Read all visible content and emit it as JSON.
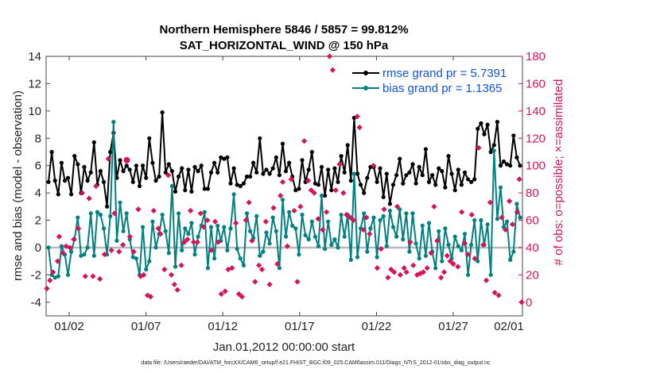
{
  "chart_data": {
    "type": "line",
    "title": "Northern Hemisphere 5846 / 5857 = 99.812%",
    "subtitle": "SAT_HORIZONTAL_WIND @ 150 hPa",
    "xlabel": "Jan.01,2012 00:00:00 start",
    "ylabel_left": "rmse and bias (model - observation)",
    "ylabel_right": "# of obs: o=possible; ×=assimilated",
    "footer": "data file: /Users/raeder/DAI/ATM_forcXX/CAM6_setup/f.e21.FHIST_BGC.f09_025.CAM6assim.011/Diags_NTrS_2012-01/obs_diag_output.nc",
    "x_range": [
      0.5,
      31.5
    ],
    "y_left_range": [
      -5,
      14
    ],
    "y_right_range": [
      -10,
      180
    ],
    "x_ticks": [
      {
        "x": 2,
        "label": "01/02"
      },
      {
        "x": 7,
        "label": "01/07"
      },
      {
        "x": 12,
        "label": "01/12"
      },
      {
        "x": 17,
        "label": "01/17"
      },
      {
        "x": 22,
        "label": "01/22"
      },
      {
        "x": 27,
        "label": "01/27"
      },
      {
        "x": 32,
        "label": "02/01"
      }
    ],
    "y_left_ticks": [
      14,
      12,
      10,
      8,
      6,
      4,
      2,
      0,
      -2,
      -4
    ],
    "y_right_ticks": [
      180,
      160,
      140,
      120,
      100,
      80,
      60,
      40,
      20,
      0
    ],
    "zero_line": 0,
    "series": [
      {
        "name": "rmse grand pr = 5.7391",
        "color": "#000000",
        "axis": "left",
        "values": [
          4.8,
          7.0,
          4.9,
          3.9,
          6.2,
          4.9,
          5.1,
          3.9,
          6.7,
          6.1,
          4.0,
          5.9,
          4.9,
          5.5,
          7.7,
          4.6,
          5.6,
          4.8,
          3.0,
          7.0,
          8.4,
          5.1,
          6.4,
          5.6,
          6.0,
          5.7,
          4.8,
          6.0,
          4.5,
          6.0,
          5.1,
          8.0,
          6.2,
          4.9,
          5.2,
          9.9,
          5.5,
          6.1,
          5.6,
          4.1,
          5.2,
          5.8,
          4.2,
          5.7,
          4.1,
          5.9,
          5.6,
          6.0,
          4.3,
          4.3,
          5.5,
          6.2,
          5.5,
          6.6,
          6.5,
          6.6,
          4.7,
          5.8,
          4.6,
          4.5,
          4.7,
          5.2,
          5.2,
          6.2,
          5.5,
          8.0,
          5.4,
          5.7,
          5.4,
          5.8,
          6.6,
          5.3,
          7.6,
          5.6,
          6.2,
          5.2,
          4.2,
          4.3,
          6.4,
          4.8,
          5.7,
          7.0,
          4.7,
          4.6,
          5.9,
          3.8,
          5.7,
          4.2,
          5.8,
          4.8,
          6.7,
          5.5,
          7.5,
          4.9,
          9.5,
          5.4,
          4.6,
          4.0,
          5.1,
          5.9,
          5.9,
          4.8,
          5.8,
          3.7,
          5.4,
          3.2,
          4.6,
          5.3,
          6.5,
          4.7,
          5.3,
          5.5,
          6.1,
          4.7,
          5.9,
          5.3,
          7.2,
          4.8,
          5.3,
          4.6,
          5.8,
          5.6,
          4.4,
          6.7,
          5.4,
          4.2,
          5.7,
          4.6,
          5.5,
          5.0,
          4.8,
          5.0,
          8.7,
          9.1,
          8.3,
          9.0,
          7.0,
          7.5,
          9.2,
          6.0,
          6.3,
          6.1,
          6.0,
          8.2,
          6.6,
          6.0
        ]
      },
      {
        "name": "bias grand pr = 1.1365",
        "color": "#008080",
        "axis": "left",
        "values": [
          0.0,
          -2.0,
          -2.2,
          -2.1,
          0.1,
          -0.5,
          -2.0,
          -0.3,
          0.6,
          2.2,
          -0.6,
          -0.5,
          0.0,
          2.5,
          -0.6,
          2.6,
          2.4,
          1.4,
          -0.5,
          2.3,
          9.2,
          0.5,
          3.3,
          1.2,
          2.5,
          0.6,
          -0.7,
          -0.8,
          -2.0,
          1.5,
          -1.6,
          -1.0,
          1.9,
          0.0,
          1.0,
          2.4,
          1.2,
          -0.4,
          4.5,
          -1.4,
          2.5,
          -0.2,
          1.4,
          1.0,
          1.8,
          -0.5,
          0.8,
          1.6,
          2.6,
          -1.5,
          1.5,
          -0.8,
          1.6,
          0.5,
          1.5,
          -0.2,
          1.4,
          3.9,
          -0.1,
          -0.8,
          -1.3,
          2.5,
          1.2,
          0.7,
          2.3,
          -0.6,
          -0.3,
          1.1,
          0.3,
          2.2,
          1.2,
          -1.5,
          3.5,
          0.8,
          2.6,
          1.6,
          1.4,
          -0.5,
          2.4,
          0.9,
          0.6,
          1.9,
          0.8,
          0.1,
          3.8,
          -0.1,
          1.9,
          0.2,
          0.6,
          0.0,
          2.4,
          0.8,
          2.4,
          -0.9,
          5.4,
          -0.7,
          1.4,
          2.5,
          -0.3,
          1.4,
          2.2,
          -0.7,
          2.0,
          2.3,
          0.1,
          2.7,
          1.5,
          0.8,
          2.8,
          0.6,
          2.5,
          -0.3,
          2.5,
          0.3,
          -0.8,
          1.6,
          -0.6,
          1.8,
          -0.3,
          -1.5,
          1.2,
          -1.0,
          1.4,
          0.2,
          -0.8,
          0.8,
          0.1,
          -0.2,
          1.0,
          -2.0,
          0.2,
          2.0,
          -1.0,
          2.0,
          0.2,
          1.7,
          -2.0,
          7.1,
          2.1,
          4.4,
          1.5,
          1.9,
          -0.9,
          -0.3,
          3.2,
          2.2
        ]
      },
      {
        "name": "possible obs (o)",
        "color": "#d4145a",
        "axis": "right",
        "marker": "circle",
        "points": [
          [
            5.75,
            104
          ]
        ]
      },
      {
        "name": "assimilated obs (×)",
        "color": "#d4145a",
        "axis": "right",
        "marker": "x",
        "points": [
          [
            0.55,
            10
          ],
          [
            0.75,
            16
          ],
          [
            0.95,
            22
          ],
          [
            1.25,
            30
          ],
          [
            1.35,
            48
          ],
          [
            1.6,
            36
          ],
          [
            1.8,
            41
          ],
          [
            2.05,
            40
          ],
          [
            2.3,
            46
          ],
          [
            2.6,
            54
          ],
          [
            2.85,
            80
          ],
          [
            3.05,
            19
          ],
          [
            3.3,
            76
          ],
          [
            3.55,
            19
          ],
          [
            3.75,
            85
          ],
          [
            4.0,
            17
          ],
          [
            4.3,
            35
          ],
          [
            4.55,
            105
          ],
          [
            4.75,
            38
          ],
          [
            4.95,
            65
          ],
          [
            5.25,
            37
          ],
          [
            5.5,
            42
          ],
          [
            5.75,
            104
          ],
          [
            5.95,
            48
          ],
          [
            6.2,
            37
          ],
          [
            6.5,
            68
          ],
          [
            6.65,
            19
          ],
          [
            6.85,
            20
          ],
          [
            7.1,
            5
          ],
          [
            7.3,
            4
          ],
          [
            7.5,
            67
          ],
          [
            7.8,
            54
          ],
          [
            7.95,
            50
          ],
          [
            8.2,
            24
          ],
          [
            8.45,
            93
          ],
          [
            8.65,
            20
          ],
          [
            8.85,
            13
          ],
          [
            9.05,
            9
          ],
          [
            9.3,
            27
          ],
          [
            9.5,
            44
          ],
          [
            9.7,
            46
          ],
          [
            9.9,
            67
          ],
          [
            10.1,
            44
          ],
          [
            10.35,
            44
          ],
          [
            10.55,
            65
          ],
          [
            10.75,
            55
          ],
          [
            11.0,
            60
          ],
          [
            11.25,
            38
          ],
          [
            11.5,
            59
          ],
          [
            11.7,
            44
          ],
          [
            11.9,
            6
          ],
          [
            12.15,
            8
          ],
          [
            12.35,
            24
          ],
          [
            12.6,
            25
          ],
          [
            12.85,
            58
          ],
          [
            13.05,
            6
          ],
          [
            13.25,
            4
          ],
          [
            13.5,
            60
          ],
          [
            13.7,
            73
          ],
          [
            13.9,
            45
          ],
          [
            14.1,
            15
          ],
          [
            14.35,
            27
          ],
          [
            14.55,
            24
          ],
          [
            14.8,
            59
          ],
          [
            15.05,
            13
          ],
          [
            15.3,
            69
          ],
          [
            15.55,
            28
          ],
          [
            15.75,
            78
          ],
          [
            15.9,
            88
          ],
          [
            16.2,
            41
          ],
          [
            16.45,
            90
          ],
          [
            16.65,
            67
          ],
          [
            16.85,
            15
          ],
          [
            17.05,
            70
          ],
          [
            17.3,
            118
          ],
          [
            17.55,
            89
          ],
          [
            17.75,
            82
          ],
          [
            17.95,
            80
          ],
          [
            18.2,
            61
          ],
          [
            18.5,
            53
          ],
          [
            18.75,
            66
          ],
          [
            18.95,
            180
          ],
          [
            19.15,
            170
          ],
          [
            19.35,
            82
          ],
          [
            19.6,
            101
          ],
          [
            19.85,
            80
          ],
          [
            20.05,
            64
          ],
          [
            20.3,
            62
          ],
          [
            20.5,
            60
          ],
          [
            20.75,
            136
          ],
          [
            20.9,
            128
          ],
          [
            21.15,
            53
          ],
          [
            21.35,
            62
          ],
          [
            21.55,
            50
          ],
          [
            21.8,
            100
          ],
          [
            22.05,
            25
          ],
          [
            22.3,
            39
          ],
          [
            22.5,
            68
          ],
          [
            22.75,
            18
          ],
          [
            22.95,
            24
          ],
          [
            23.15,
            22
          ],
          [
            23.35,
            70
          ],
          [
            23.55,
            20
          ],
          [
            23.8,
            25
          ],
          [
            23.95,
            22
          ],
          [
            24.2,
            44
          ],
          [
            24.4,
            27
          ],
          [
            24.65,
            20
          ],
          [
            24.85,
            21
          ],
          [
            25.05,
            22
          ],
          [
            25.3,
            25
          ],
          [
            25.55,
            36
          ],
          [
            25.75,
            70
          ],
          [
            25.95,
            45
          ],
          [
            26.2,
            18
          ],
          [
            26.4,
            22
          ],
          [
            26.6,
            34
          ],
          [
            26.8,
            30
          ],
          [
            27.0,
            28
          ],
          [
            27.3,
            26
          ],
          [
            27.55,
            66
          ],
          [
            27.75,
            43
          ],
          [
            27.95,
            35
          ],
          [
            28.2,
            64
          ],
          [
            28.4,
            32
          ],
          [
            28.65,
            113
          ],
          [
            28.95,
            42
          ],
          [
            29.15,
            16
          ],
          [
            29.4,
            73
          ],
          [
            29.7,
            7
          ],
          [
            29.95,
            5
          ],
          [
            30.15,
            62
          ],
          [
            30.4,
            53
          ],
          [
            30.65,
            74
          ],
          [
            30.85,
            57
          ],
          [
            31.15,
            66
          ],
          [
            31.3,
            90
          ],
          [
            31.45,
            0
          ]
        ]
      }
    ]
  }
}
